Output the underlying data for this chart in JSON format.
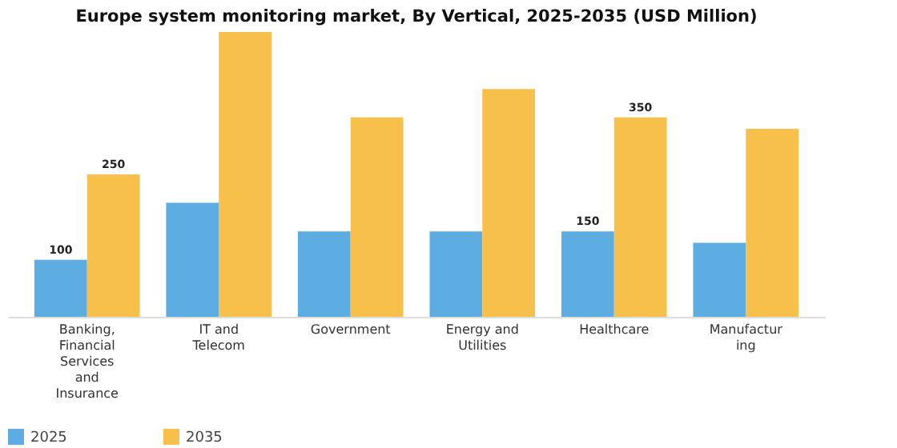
{
  "chart_data": {
    "type": "bar",
    "title": "Europe system monitoring market, By Vertical, 2025-2035 (USD Million)",
    "categories": [
      "Banking, Financial Services and Insurance",
      "IT and Telecom",
      "Government",
      "Energy and Utilities",
      "Healthcare",
      "Manufacturing"
    ],
    "series": [
      {
        "name": "2025",
        "color": "#5dade2",
        "values": [
          100,
          200,
          150,
          150,
          150,
          130
        ],
        "value_labels": [
          "100",
          null,
          null,
          null,
          "150",
          null
        ]
      },
      {
        "name": "2035",
        "color": "#f7c04a",
        "values": [
          250,
          500,
          350,
          400,
          350,
          330
        ],
        "value_labels": [
          "250",
          null,
          null,
          null,
          "350",
          null
        ]
      }
    ],
    "legend": "bottom",
    "grid": false
  }
}
